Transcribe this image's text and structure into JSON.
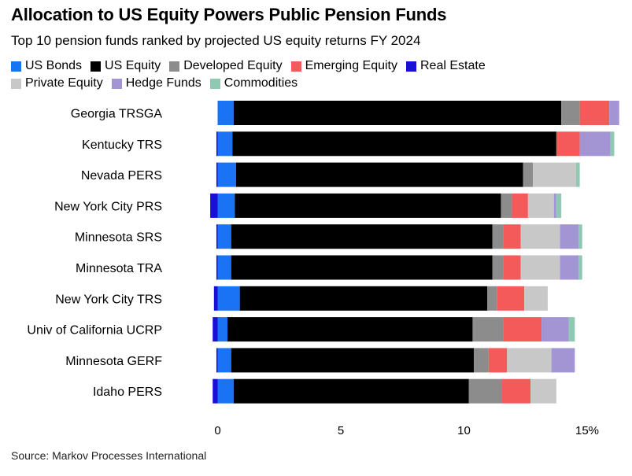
{
  "title": "Allocation to US Equity Powers Public Pension Funds",
  "subtitle": "Top 10 pension funds ranked by projected US equity returns FY 2024",
  "source": "Source: Markov Processes International",
  "legend": [
    {
      "label": "US Bonds",
      "color": "#1a73f5"
    },
    {
      "label": "US Equity",
      "color": "#000000"
    },
    {
      "label": "Developed Equity",
      "color": "#8c8c8c"
    },
    {
      "label": "Emerging Equity",
      "color": "#f55a5a"
    },
    {
      "label": "Real Estate",
      "color": "#1a0fd6"
    },
    {
      "label": "Private Equity",
      "color": "#c8c8c8"
    },
    {
      "label": "Hedge Funds",
      "color": "#a394d4"
    },
    {
      "label": "Commodities",
      "color": "#8fc9b4"
    }
  ],
  "chart_data": {
    "type": "bar",
    "orientation": "horizontal",
    "stacked": true,
    "categories": [
      "Georgia TRSGA",
      "Kentucky TRS",
      "Nevada PERS",
      "New York City PRS",
      "Minnesota SRS",
      "Minnesota TRA",
      "New York City TRS",
      "Univ of California UCRP",
      "Minnesota GERF",
      "Idaho PERS"
    ],
    "series": [
      {
        "name": "Real Estate",
        "color": "#1a0fd6",
        "values": [
          0,
          -0.05,
          -0.05,
          -0.3,
          -0.05,
          -0.05,
          -0.15,
          -0.2,
          -0.05,
          -0.2
        ]
      },
      {
        "name": "US Bonds",
        "color": "#1a73f5",
        "values": [
          0.65,
          0.6,
          0.75,
          0.7,
          0.55,
          0.55,
          0.9,
          0.4,
          0.55,
          0.65
        ]
      },
      {
        "name": "US Equity",
        "color": "#000000",
        "values": [
          13.3,
          13.15,
          11.65,
          10.8,
          10.6,
          10.6,
          10.05,
          9.95,
          9.85,
          9.55
        ]
      },
      {
        "name": "Developed Equity",
        "color": "#8c8c8c",
        "values": [
          0.75,
          0,
          0.4,
          0.45,
          0.45,
          0.45,
          0.4,
          1.25,
          0.6,
          1.35
        ]
      },
      {
        "name": "Emerging Equity",
        "color": "#f55a5a",
        "values": [
          1.2,
          0.95,
          0,
          0.65,
          0.7,
          0.7,
          1.1,
          1.55,
          0.75,
          1.15
        ]
      },
      {
        "name": "Private Equity",
        "color": "#c8c8c8",
        "values": [
          0,
          0,
          1.75,
          1.05,
          1.6,
          1.6,
          0.95,
          0,
          1.8,
          1.05
        ]
      },
      {
        "name": "Hedge Funds",
        "color": "#a394d4",
        "values": [
          0.4,
          1.25,
          0,
          0.1,
          0.75,
          0.75,
          0,
          1.1,
          0.95,
          0
        ]
      },
      {
        "name": "Commodities",
        "color": "#8fc9b4",
        "values": [
          0,
          0.15,
          0.15,
          0.2,
          0.15,
          0.15,
          0,
          0.25,
          0,
          0
        ]
      }
    ],
    "xticks": [
      0,
      5,
      10,
      15
    ],
    "xtick_labels": [
      "0",
      "5",
      "10",
      "15%"
    ],
    "xlim": [
      -0.3,
      16
    ],
    "grid": false,
    "legend_placement": "top"
  }
}
